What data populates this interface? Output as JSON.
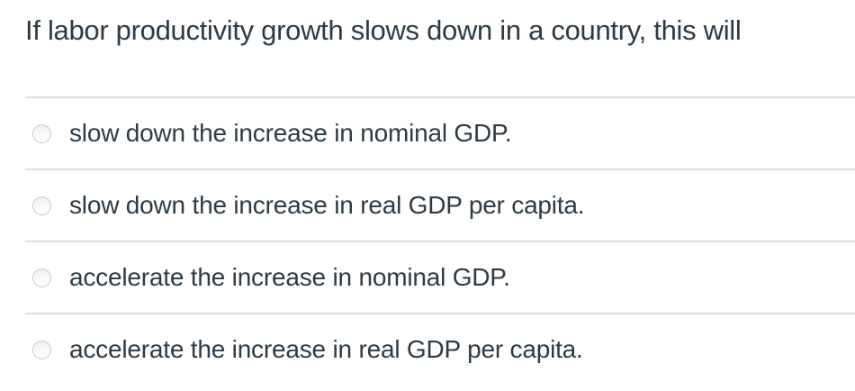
{
  "question": {
    "text": "If labor productivity growth slows down in a country, this will"
  },
  "options": [
    {
      "label": "slow down the increase in nominal GDP.",
      "selected": false
    },
    {
      "label": "slow down the increase in real GDP per capita.",
      "selected": false
    },
    {
      "label": "accelerate the increase in nominal GDP.",
      "selected": false
    },
    {
      "label": "accelerate the increase in real GDP per capita.",
      "selected": false
    }
  ],
  "colors": {
    "text": "#2d3b45",
    "divider": "#dedede",
    "radio_border": "#c6c9cc",
    "background": "#ffffff"
  }
}
